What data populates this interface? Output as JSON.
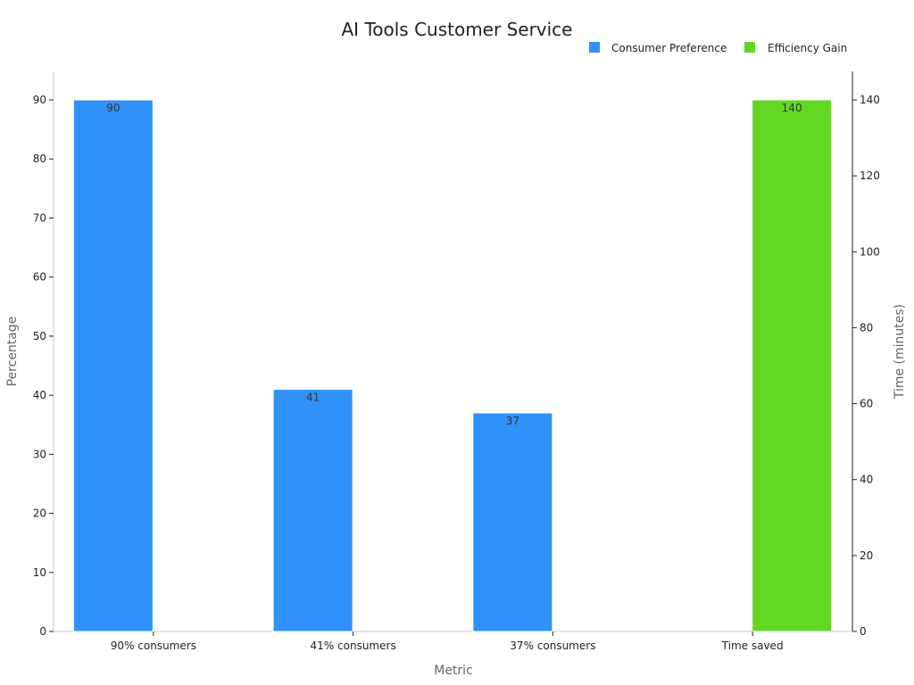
{
  "chart_data": {
    "type": "bar",
    "title": "AI Tools Customer Service",
    "xlabel": "Metric",
    "ylabel": "Percentage",
    "y2label": "Time (minutes)",
    "categories": [
      "90% consumers",
      "41% consumers",
      "37% consumers",
      "Time saved"
    ],
    "ylim": [
      0,
      90
    ],
    "y2lim": [
      0,
      140
    ],
    "yticks": [
      0,
      10,
      20,
      30,
      40,
      50,
      60,
      70,
      80,
      90
    ],
    "y2ticks": [
      0,
      20,
      40,
      60,
      80,
      100,
      120,
      140
    ],
    "legend_position": "top-right",
    "series": [
      {
        "name": "Consumer Preference",
        "axis": "left",
        "color": "#3092f9",
        "values": [
          90,
          41,
          37,
          null
        ]
      },
      {
        "name": "Efficiency Gain",
        "axis": "right",
        "color": "#63d624",
        "values": [
          null,
          null,
          null,
          140
        ]
      }
    ]
  }
}
